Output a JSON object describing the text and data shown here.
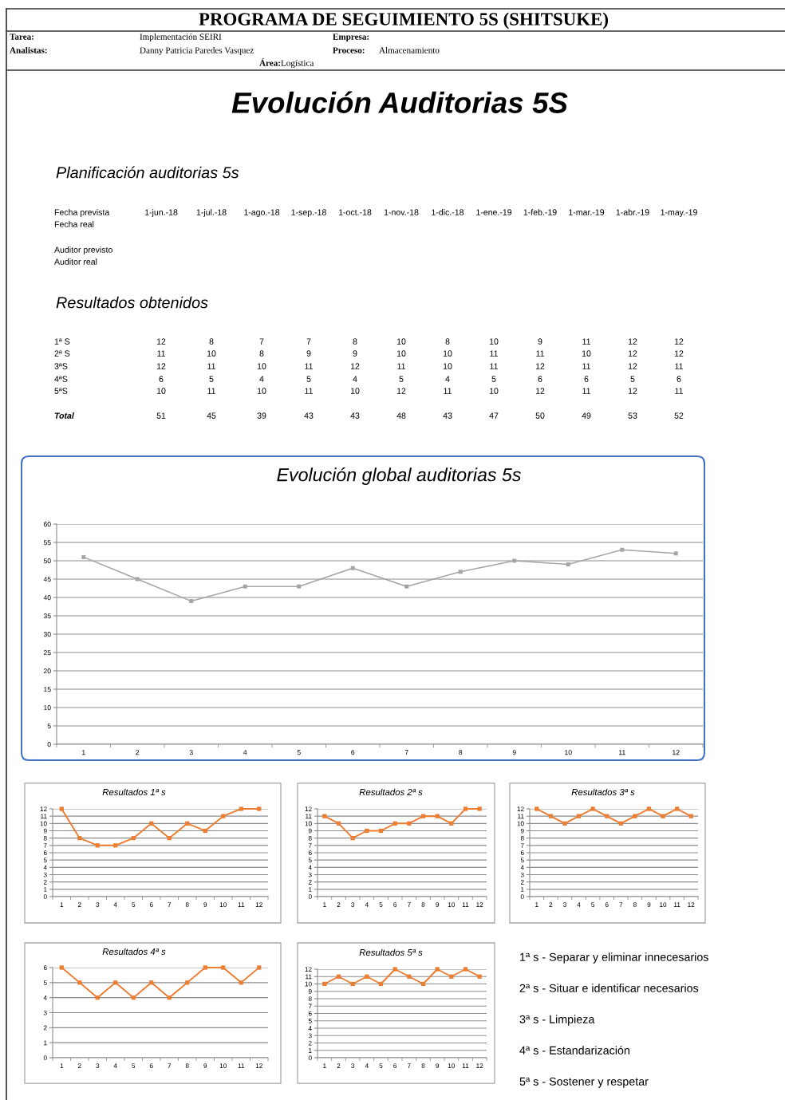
{
  "chart_data": [
    {
      "type": "line",
      "title": "Evolución global auditorias 5s",
      "categories": [
        "1",
        "2",
        "3",
        "4",
        "5",
        "6",
        "7",
        "8",
        "9",
        "10",
        "11",
        "12"
      ],
      "values": [
        51,
        45,
        39,
        43,
        43,
        48,
        43,
        47,
        50,
        49,
        53,
        52
      ],
      "color": "#a5a5a5",
      "ylim": [
        0,
        60
      ],
      "yticks": [
        0,
        5,
        10,
        15,
        20,
        25,
        30,
        35,
        40,
        45,
        50,
        55,
        60
      ],
      "grid": "y",
      "marker": "square",
      "line_style": "solid",
      "annotations": [
        "PROGRAMA DE SEGUIMIENTO 5S (SHITSUKE)",
        "Tarea:",
        "Implementación SEIRI",
        "Empresa:",
        "Analistas:",
        "Danny Patricia Paredes Vasquez",
        "Proceso:",
        "Almacenamiento",
        "Área:",
        "Logística",
        "Evolución Auditorias 5S",
        "Planificación auditorias 5s",
        "Fecha prevista",
        "1-jun.-18",
        "1-jul.-18",
        "1-ago.-18",
        "1-sep.-18",
        "1-oct.-18",
        "1-nov.-18",
        "1-dic.-18",
        "1-ene.-19",
        "1-feb.-19",
        "1-mar.-19",
        "1-abr.-19",
        "1-may.-19",
        "Fecha real",
        "Auditor previsto",
        "Auditor real",
        "Resultados obtenidos",
        "1ª S",
        "12",
        "8",
        "7",
        "7",
        "8",
        "10",
        "8",
        "10",
        "9",
        "11",
        "12",
        "12",
        "2ª S",
        "11",
        "10",
        "8",
        "9",
        "9",
        "10",
        "10",
        "11",
        "11",
        "10",
        "12",
        "12",
        "3ªS",
        "12",
        "11",
        "10",
        "11",
        "12",
        "11",
        "10",
        "11",
        "12",
        "11",
        "12",
        "11",
        "4ªS",
        "6",
        "5",
        "4",
        "5",
        "4",
        "5",
        "4",
        "5",
        "6",
        "6",
        "5",
        "6",
        "5ªS",
        "10",
        "11",
        "10",
        "11",
        "10",
        "12",
        "11",
        "10",
        "12",
        "11",
        "12",
        "11",
        "Total",
        "51",
        "45",
        "39",
        "43",
        "43",
        "48",
        "43",
        "47",
        "50",
        "49",
        "53",
        "52"
      ]
    },
    {
      "type": "line",
      "title": "Resultados 1ª s",
      "categories": [
        "1",
        "2",
        "3",
        "4",
        "5",
        "6",
        "7",
        "8",
        "9",
        "10",
        "11",
        "12"
      ],
      "values": [
        12,
        8,
        7,
        7,
        8,
        10,
        8,
        10,
        9,
        11,
        12,
        12
      ],
      "color": "#ed7d31",
      "ylim": [
        0,
        12
      ],
      "yticks": [
        0,
        1,
        2,
        3,
        4,
        5,
        6,
        7,
        8,
        9,
        10,
        11,
        12
      ],
      "grid": "y",
      "marker": "square",
      "line_style": "solid"
    },
    {
      "type": "line",
      "title": "Resultados 2ª s",
      "categories": [
        "1",
        "2",
        "3",
        "4",
        "5",
        "6",
        "7",
        "8",
        "9",
        "10",
        "11",
        "12"
      ],
      "values": [
        11,
        10,
        8,
        9,
        9,
        10,
        10,
        11,
        11,
        10,
        12,
        12
      ],
      "color": "#ed7d31",
      "ylim": [
        0,
        12
      ],
      "yticks": [
        0,
        1,
        2,
        3,
        4,
        5,
        6,
        7,
        8,
        9,
        10,
        11,
        12
      ],
      "grid": "y",
      "marker": "square",
      "line_style": "solid"
    },
    {
      "type": "line",
      "title": "Resultados 3ª s",
      "categories": [
        "1",
        "2",
        "3",
        "4",
        "5",
        "6",
        "7",
        "8",
        "9",
        "10",
        "11",
        "12"
      ],
      "values": [
        12,
        11,
        10,
        11,
        12,
        11,
        10,
        11,
        12,
        11,
        12,
        11
      ],
      "color": "#ed7d31",
      "ylim": [
        0,
        12
      ],
      "yticks": [
        0,
        1,
        2,
        3,
        4,
        5,
        6,
        7,
        8,
        9,
        10,
        11,
        12
      ],
      "grid": "y",
      "marker": "square",
      "line_style": "solid"
    },
    {
      "type": "line",
      "title": "Resultados 4ª s",
      "categories": [
        "1",
        "2",
        "3",
        "4",
        "5",
        "6",
        "7",
        "8",
        "9",
        "10",
        "11",
        "12"
      ],
      "values": [
        6,
        5,
        4,
        5,
        4,
        5,
        4,
        5,
        6,
        6,
        5,
        6
      ],
      "color": "#ed7d31",
      "ylim": [
        0,
        6
      ],
      "yticks": [
        0,
        1,
        2,
        3,
        4,
        5,
        6
      ],
      "grid": "y",
      "marker": "square",
      "line_style": "solid"
    },
    {
      "type": "line",
      "title": "Resultados 5ª s",
      "categories": [
        "1",
        "2",
        "3",
        "4",
        "5",
        "6",
        "7",
        "8",
        "9",
        "10",
        "11",
        "12"
      ],
      "values": [
        10,
        11,
        10,
        11,
        10,
        12,
        11,
        10,
        12,
        11,
        12,
        11
      ],
      "color": "#ed7d31",
      "ylim": [
        0,
        12
      ],
      "yticks": [
        0,
        1,
        2,
        3,
        4,
        5,
        6,
        7,
        8,
        9,
        10,
        11,
        12
      ],
      "grid": "y",
      "marker": "square",
      "line_style": "solid",
      "annotations": [
        "1ª s - Separar y eliminar innecesarios",
        "2ª s - Situar e identificar necesarios",
        "3ª s - Limpieza",
        "4ª s - Estandarización",
        "5ª s - Sostener y respetar"
      ]
    }
  ]
}
